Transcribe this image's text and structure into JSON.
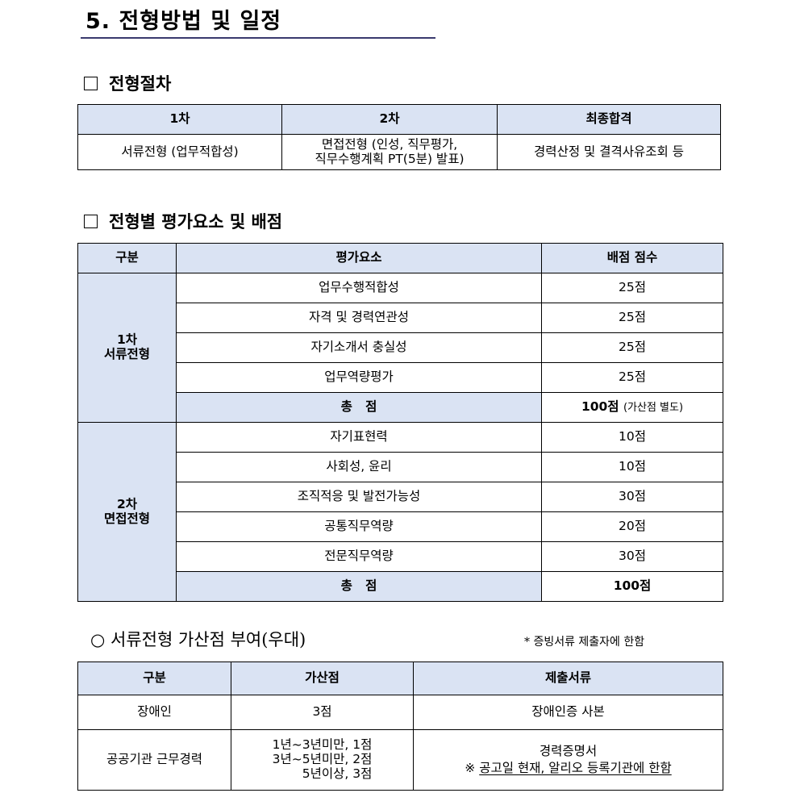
{
  "title": "5. 전형방법 및 일정",
  "procedure": {
    "heading": "전형절차",
    "headers": [
      "1차",
      "2차",
      "최종합격"
    ],
    "row": [
      "서류전형 (업무적합성)",
      "면접전형 (인성, 직무평가,",
      "직무수행계획 PT(5분) 발표)",
      "경력산정 및 결격사유조회 등"
    ]
  },
  "evaluation": {
    "heading": "전형별 평가요소 및 배점",
    "headers": [
      "구분",
      "평가요소",
      "배점 점수"
    ],
    "stage1": {
      "label1": "1차",
      "label2": "서류전형",
      "items": [
        [
          "업무수행적합성",
          "25점"
        ],
        [
          "자격 및 경력연관성",
          "25점"
        ],
        [
          "자기소개서 충실성",
          "25점"
        ],
        [
          "업무역량평가",
          "25점"
        ]
      ],
      "total_label": "총   점",
      "total": "100점",
      "total_note": "(가산점 별도)"
    },
    "stage2": {
      "label1": "2차",
      "label2": "면접전형",
      "items": [
        [
          "자기표현력",
          "10점"
        ],
        [
          "사회성, 윤리",
          "10점"
        ],
        [
          "조직적응 및 발전가능성",
          "30점"
        ],
        [
          "공통직무역량",
          "20점"
        ],
        [
          "전문직무역량",
          "30점"
        ]
      ],
      "total_label": "총   점",
      "total": "100점"
    }
  },
  "bonus": {
    "heading": "○  서류전형 가산점 부여(우대)",
    "note": "* 증빙서류 제출자에 한함",
    "headers": [
      "구분",
      "가산점",
      "제출서류"
    ],
    "rows": [
      {
        "type": "장애인",
        "points": [
          "3점"
        ],
        "docs": [
          "장애인증 사본"
        ]
      },
      {
        "type": "공공기관 근무경력",
        "points": [
          "1년~3년미만, 1점",
          "3년~5년미만, 2점",
          "5년이상, 3점"
        ],
        "docs": [
          "경력증명서",
          "※ ",
          "공고일 현재, 알리오 등록기관에 한함"
        ]
      }
    ]
  },
  "colors": {
    "header_bg": "#dae3f3",
    "underline": "#3a3a6e"
  }
}
